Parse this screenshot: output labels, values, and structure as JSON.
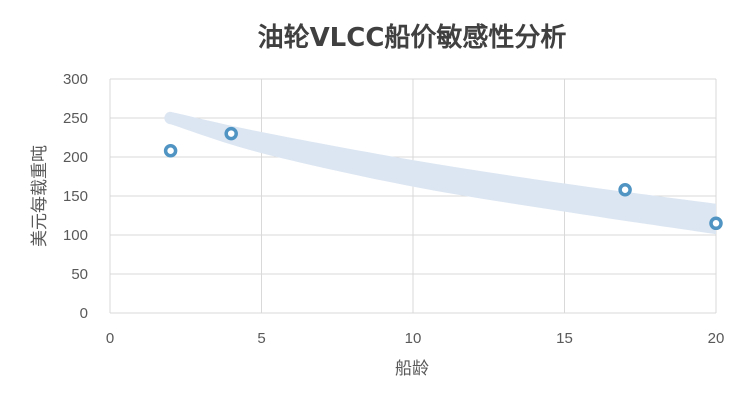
{
  "chart_data": {
    "type": "scatter",
    "title": "油轮VLCC船价敏感性分析",
    "xlabel": "船龄",
    "ylabel": "美元每载重吨",
    "xlim": [
      0,
      20
    ],
    "ylim": [
      0,
      300
    ],
    "x_ticks": [
      0,
      5,
      10,
      15,
      20
    ],
    "y_ticks": [
      0,
      50,
      100,
      150,
      200,
      250,
      300
    ],
    "grid": true,
    "series": [
      {
        "points": [
          {
            "x": 2,
            "y": 208
          },
          {
            "x": 4,
            "y": 230
          },
          {
            "x": 17,
            "y": 158
          },
          {
            "x": 20,
            "y": 115
          }
        ]
      }
    ],
    "band": {
      "x": [
        2,
        5,
        10,
        15,
        20
      ],
      "upper": [
        258,
        232,
        196,
        166,
        140
      ],
      "lower": [
        242,
        205,
        162,
        130,
        101
      ]
    },
    "colors": {
      "marker_stroke": "#4f94c2",
      "marker_fill": "#ffffff",
      "band": "#dce6f2"
    }
  }
}
